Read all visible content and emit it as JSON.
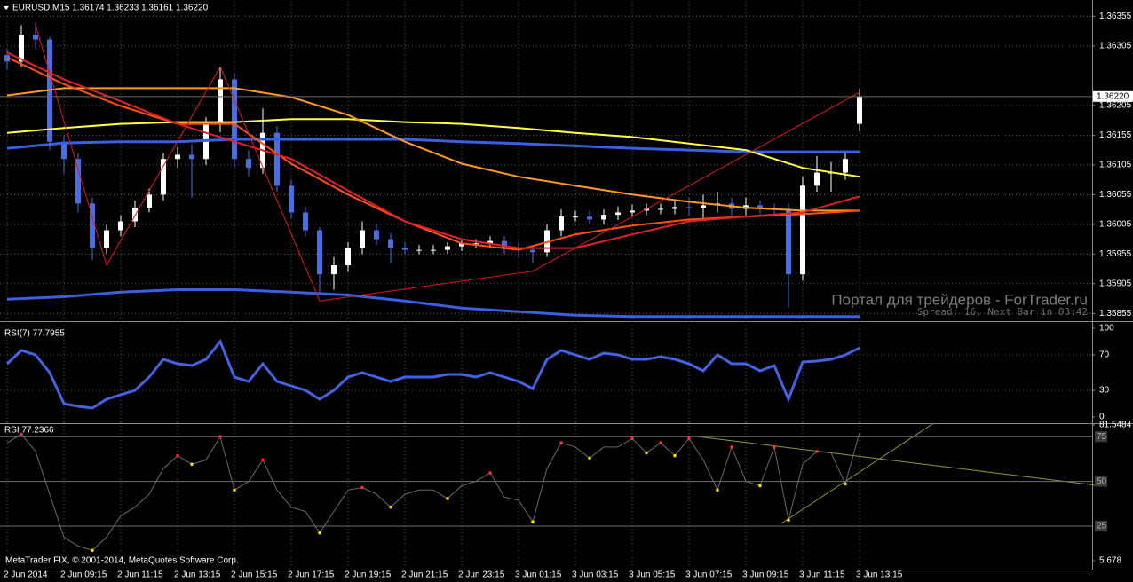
{
  "chart_data": [
    {
      "type": "candlestick",
      "title": "EURUSD,M15  1.36174 1.36233 1.36161 1.36220",
      "watermark": "Портал для трейдеров - ForTrader.ru",
      "status": "Spread: 16. Next Bar in 03:42",
      "x": [
        "2 Jun 2014",
        null,
        null,
        null,
        "2 Jun 09:15",
        null,
        null,
        null,
        "2 Jun 11:15",
        null,
        null,
        null,
        "2 Jun 13:15",
        null,
        null,
        null,
        "2 Jun 15:15",
        null,
        null,
        null,
        "2 Jun 17:15",
        null,
        null,
        null,
        "2 Jun 19:15",
        null,
        null,
        null,
        "2 Jun 21:15",
        null,
        null,
        null,
        "2 Jun 23:15",
        null,
        null,
        null,
        "3 Jun 01:15",
        null,
        null,
        null,
        "3 Jun 03:15",
        null,
        null,
        null,
        "3 Jun 05:15",
        null,
        null,
        null,
        "3 Jun 07:15",
        null,
        null,
        null,
        "3 Jun 09:15",
        null,
        null,
        null,
        "3 Jun 11:15",
        null,
        null,
        null,
        "3 Jun 13:15"
      ],
      "open": [
        1.3629,
        1.36279,
        1.36324,
        1.36316,
        1.36144,
        1.36115,
        1.3604,
        1.35965,
        1.35995,
        1.3601,
        1.36033,
        1.36055,
        1.36115,
        1.36122,
        1.36115,
        1.36174,
        1.36249,
        1.36115,
        1.361,
        1.36159,
        1.3607,
        1.36025,
        1.35995,
        1.35921,
        1.35936,
        1.35965,
        1.35995,
        1.3598,
        1.35965,
        1.35962,
        1.35962,
        1.35962,
        1.35968,
        1.35973,
        1.35973,
        1.35977,
        1.35965,
        1.35962,
        1.35958,
        1.35995,
        1.36018,
        1.36018,
        1.36013,
        1.36021,
        1.36025,
        1.36028,
        1.36031,
        1.36031,
        1.36034,
        1.36033,
        1.36037,
        1.3604,
        1.36031,
        1.36037,
        1.36033,
        1.36031,
        1.35921,
        1.3607,
        1.36092,
        1.36092,
        1.36174
      ],
      "high": [
        1.363,
        1.3634,
        1.36345,
        1.3632,
        1.36155,
        1.36125,
        1.3605,
        1.36005,
        1.3602,
        1.36045,
        1.36065,
        1.36125,
        1.36135,
        1.3614,
        1.36185,
        1.3627,
        1.3626,
        1.3613,
        1.362,
        1.3617,
        1.3608,
        1.36035,
        1.36,
        1.3595,
        1.35975,
        1.3601,
        1.36005,
        1.3599,
        1.35975,
        1.3597,
        1.3597,
        1.35975,
        1.3598,
        1.3598,
        1.35985,
        1.35985,
        1.35975,
        1.3597,
        1.36005,
        1.3603,
        1.36028,
        1.36028,
        1.3603,
        1.36035,
        1.36038,
        1.3604,
        1.3604,
        1.36045,
        1.3605,
        1.36055,
        1.3606,
        1.3605,
        1.3605,
        1.36045,
        1.3604,
        1.3604,
        1.36085,
        1.3612,
        1.3611,
        1.36125,
        1.36233
      ],
      "low": [
        1.36265,
        1.3627,
        1.363,
        1.3613,
        1.3609,
        1.36025,
        1.35945,
        1.35955,
        1.35985,
        1.36,
        1.36025,
        1.36045,
        1.361,
        1.3605,
        1.36105,
        1.3616,
        1.361,
        1.36085,
        1.3609,
        1.3606,
        1.36015,
        1.35985,
        1.3589,
        1.35895,
        1.35925,
        1.35955,
        1.3597,
        1.3594,
        1.35955,
        1.35955,
        1.35955,
        1.35955,
        1.3596,
        1.35965,
        1.35965,
        1.35955,
        1.3595,
        1.3594,
        1.3595,
        1.35985,
        1.3601,
        1.36005,
        1.36005,
        1.36012,
        1.36018,
        1.3602,
        1.36022,
        1.36022,
        1.3602,
        1.36015,
        1.36025,
        1.3602,
        1.3602,
        1.36022,
        1.3602,
        1.35865,
        1.3591,
        1.3606,
        1.3606,
        1.3608,
        1.36161
      ],
      "close": [
        1.36279,
        1.36324,
        1.36316,
        1.36144,
        1.36115,
        1.3604,
        1.35965,
        1.35995,
        1.3601,
        1.36033,
        1.36055,
        1.36115,
        1.36122,
        1.36115,
        1.36174,
        1.36249,
        1.36115,
        1.361,
        1.36159,
        1.3607,
        1.36025,
        1.35995,
        1.35921,
        1.35936,
        1.35965,
        1.35995,
        1.3598,
        1.35965,
        1.35962,
        1.35962,
        1.35962,
        1.35968,
        1.35973,
        1.35973,
        1.35977,
        1.35965,
        1.35962,
        1.35958,
        1.35995,
        1.36018,
        1.36018,
        1.36013,
        1.36021,
        1.36025,
        1.36028,
        1.36031,
        1.36031,
        1.36034,
        1.36033,
        1.36037,
        1.3604,
        1.36031,
        1.36037,
        1.36033,
        1.36031,
        1.35921,
        1.3607,
        1.36092,
        1.36092,
        1.36115,
        1.3622
      ],
      "up_color": "#ffffff",
      "down_color": "#4a6ee0",
      "overlays": [
        {
          "color": "#3a5fe0",
          "width": 3,
          "x": [
            0,
            4,
            8,
            12,
            16,
            20,
            24,
            28,
            32,
            36,
            40,
            44,
            48,
            52,
            56,
            60
          ],
          "values": [
            1.36133,
            1.36142,
            1.36144,
            1.36144,
            1.36148,
            1.36148,
            1.36148,
            1.36148,
            1.36144,
            1.36141,
            1.36137,
            1.36133,
            1.3613,
            1.36127,
            1.36127,
            1.36127
          ]
        },
        {
          "color": "#3a5fe0",
          "width": 3,
          "x": [
            0,
            4,
            8,
            12,
            16,
            20,
            24,
            28,
            32,
            36,
            40,
            44,
            48,
            52,
            56,
            60
          ],
          "values": [
            1.35879,
            1.35883,
            1.35891,
            1.35895,
            1.35895,
            1.35891,
            1.35886,
            1.35876,
            1.35864,
            1.35858,
            1.35852,
            1.3585,
            1.3585,
            1.3585,
            1.3585,
            1.3585
          ]
        },
        {
          "color": "#ffff40",
          "width": 2,
          "x": [
            0,
            4,
            8,
            12,
            16,
            20,
            24,
            28,
            32,
            36,
            40,
            44,
            48,
            52,
            56,
            60
          ],
          "values": [
            1.36159,
            1.36167,
            1.36174,
            1.36177,
            1.36177,
            1.36182,
            1.36182,
            1.36177,
            1.36174,
            1.36167,
            1.36159,
            1.36152,
            1.36141,
            1.3613,
            1.361,
            1.36085
          ]
        },
        {
          "color": "#ff9a20",
          "width": 2,
          "x": [
            0,
            4,
            8,
            12,
            16,
            20,
            24,
            28,
            32,
            36,
            40,
            44,
            48,
            52,
            56,
            60
          ],
          "values": [
            1.36222,
            1.36234,
            1.36234,
            1.36234,
            1.36234,
            1.36219,
            1.36189,
            1.36144,
            1.36107,
            1.36085,
            1.3607,
            1.36055,
            1.36043,
            1.36033,
            1.36028,
            1.36028
          ]
        },
        {
          "color": "#ff5010",
          "width": 2,
          "x": [
            0,
            4,
            8,
            12,
            16,
            20,
            24,
            28,
            32,
            36,
            40,
            44,
            48,
            52,
            56,
            60
          ],
          "values": [
            1.36286,
            1.36241,
            1.36204,
            1.36174,
            1.36174,
            1.36107,
            1.36055,
            1.3601,
            1.35973,
            1.35962,
            1.35988,
            1.36003,
            1.36013,
            1.36018,
            1.36022,
            1.36028
          ]
        },
        {
          "color": "#e0202a",
          "width": 2,
          "x": [
            0,
            4,
            8,
            12,
            16,
            20,
            24,
            28,
            32,
            36,
            40,
            44,
            48,
            52,
            56,
            60
          ],
          "values": [
            1.36294,
            1.36249,
            1.36212,
            1.36174,
            1.36144,
            1.36115,
            1.36062,
            1.3601,
            1.3598,
            1.35965,
            1.35965,
            1.35988,
            1.3601,
            1.36018,
            1.36025,
            1.36052
          ]
        },
        {
          "color": "#e01818",
          "width": 1,
          "x": [
            2,
            7,
            15,
            22,
            37,
            60
          ],
          "values": [
            1.3634,
            1.35936,
            1.3627,
            1.35876,
            1.35926,
            1.36227
          ]
        }
      ],
      "ylim": [
        1.35845,
        1.36375
      ],
      "yticks": [
        1.36355,
        1.36305,
        1.36205,
        1.36155,
        1.36105,
        1.36055,
        1.36005,
        1.35955,
        1.35905,
        1.35855
      ],
      "last_price": {
        "value": 1.3622,
        "label": "1.36220"
      },
      "grid": true
    },
    {
      "type": "line",
      "title": "RSI(7) 77.7955",
      "color": "#4264e4",
      "width": 3,
      "values": [
        60,
        75,
        70,
        50,
        15,
        12,
        10,
        20,
        25,
        30,
        45,
        65,
        60,
        58,
        65,
        85,
        45,
        40,
        60,
        40,
        35,
        30,
        20,
        30,
        45,
        50,
        45,
        40,
        45,
        45,
        45,
        48,
        48,
        45,
        50,
        45,
        40,
        32,
        65,
        75,
        70,
        65,
        72,
        70,
        65,
        65,
        68,
        65,
        60,
        52,
        70,
        60,
        60,
        52,
        58,
        20,
        62,
        63,
        65,
        70,
        77.8
      ],
      "ylim": [
        0,
        100
      ],
      "yticks": [
        100,
        70,
        30,
        0
      ],
      "grid": true
    },
    {
      "type": "line",
      "title": "RSI 77.2366",
      "footer": "MetaTrader FIX, © 2001-2014, MetaQuotes Software Corp.",
      "color": "#6a6a6a",
      "width": 1,
      "peak_color": "#ff2a2a",
      "trough_color": "#ffd21a",
      "values": [
        71.6,
        76.4,
        66.8,
        42.8,
        18.8,
        13.9,
        11.5,
        18.8,
        30.8,
        35.6,
        42.8,
        57.2,
        64.4,
        59.6,
        62,
        75,
        45.2,
        50,
        62,
        45.2,
        35.6,
        33.2,
        21.2,
        33.2,
        45.2,
        46.6,
        42.8,
        35.6,
        42.8,
        45.2,
        45.2,
        40.4,
        47.6,
        50,
        54.8,
        41.3,
        39.4,
        27.4,
        57.2,
        71.6,
        69.2,
        63,
        69.2,
        69.2,
        74,
        65.9,
        71.6,
        64.4,
        74,
        62,
        45.2,
        69.2,
        50,
        47.6,
        69.2,
        28.4,
        59.6,
        66.8,
        65.9,
        48.6,
        77.2
      ],
      "ylim": [
        5.678,
        81.5484
      ],
      "yticks": [
        81.5484,
        75,
        50,
        25,
        5.678
      ],
      "level_boxes": true,
      "grid": true
    }
  ]
}
